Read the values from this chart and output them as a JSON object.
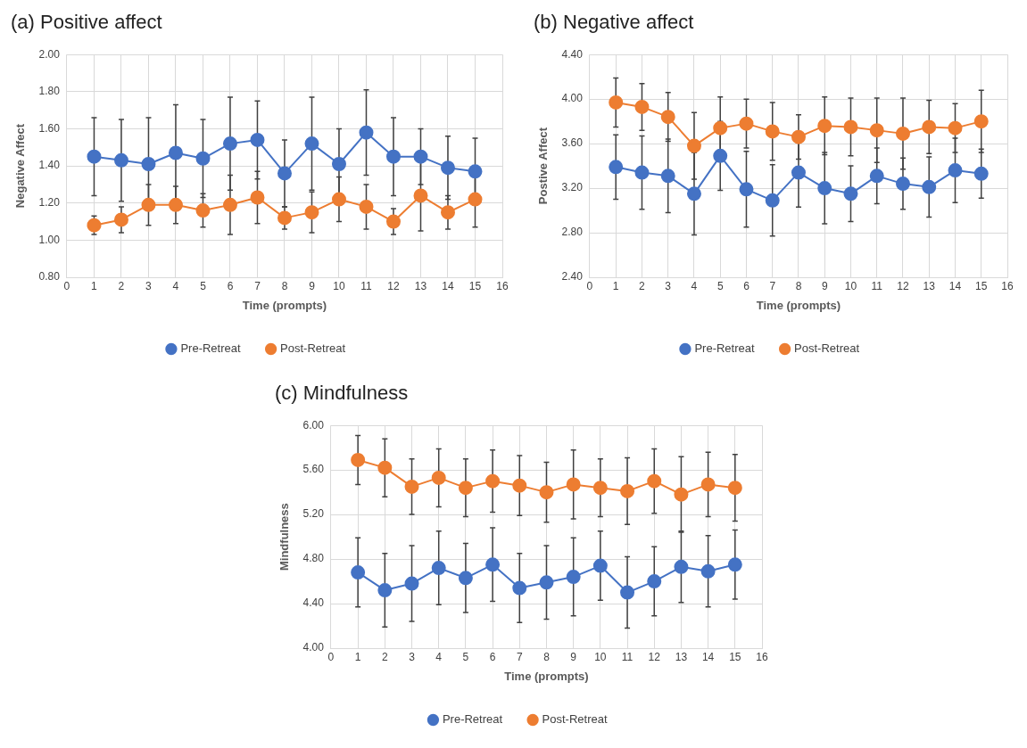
{
  "chart_data": [
    {
      "type": "line",
      "title": "(a) Positive affect",
      "xlabel": "Time (prompts)",
      "ylabel": "Negative Affect",
      "x": [
        1,
        2,
        3,
        4,
        5,
        6,
        7,
        8,
        9,
        10,
        11,
        12,
        13,
        14,
        15
      ],
      "xlim": [
        0,
        16
      ],
      "xticks": [
        0,
        1,
        2,
        3,
        4,
        5,
        6,
        7,
        8,
        9,
        10,
        11,
        12,
        13,
        14,
        15,
        16
      ],
      "ylim": [
        0.8,
        2.0
      ],
      "yticks": [
        {
          "value": 0.8,
          "label": "0.80"
        },
        {
          "value": 1.0,
          "label": "1.00"
        },
        {
          "value": 1.2,
          "label": "1.20"
        },
        {
          "value": 1.4,
          "label": "1.40"
        },
        {
          "value": 1.6,
          "label": "1.60"
        },
        {
          "value": 1.8,
          "label": "1.80"
        },
        {
          "value": 2.0,
          "label": "2.00"
        }
      ],
      "grid": true,
      "legend": "bottom",
      "marker": "circle",
      "series": [
        {
          "name": "Pre-Retreat",
          "color": "#4472c4",
          "values": [
            1.45,
            1.43,
            1.41,
            1.47,
            1.44,
            1.52,
            1.54,
            1.36,
            1.52,
            1.41,
            1.58,
            1.45,
            1.45,
            1.39,
            1.37
          ],
          "errors": [
            0.21,
            0.22,
            0.25,
            0.26,
            0.21,
            0.25,
            0.21,
            0.18,
            0.25,
            0.19,
            0.23,
            0.21,
            0.15,
            0.17,
            0.18
          ]
        },
        {
          "name": "Post-Retreat",
          "color": "#ed7d31",
          "values": [
            1.08,
            1.11,
            1.19,
            1.19,
            1.16,
            1.19,
            1.23,
            1.12,
            1.15,
            1.22,
            1.18,
            1.1,
            1.24,
            1.15,
            1.22
          ],
          "errors": [
            0.05,
            0.07,
            0.11,
            0.1,
            0.09,
            0.16,
            0.14,
            0.06,
            0.11,
            0.12,
            0.12,
            0.07,
            0.19,
            0.09,
            0.15
          ]
        }
      ]
    },
    {
      "type": "line",
      "title": "(b) Negative affect",
      "xlabel": "Time (prompts)",
      "ylabel": "Postive Affect",
      "x": [
        1,
        2,
        3,
        4,
        5,
        6,
        7,
        8,
        9,
        10,
        11,
        12,
        13,
        14,
        15
      ],
      "xlim": [
        0,
        16
      ],
      "xticks": [
        0,
        1,
        2,
        3,
        4,
        5,
        6,
        7,
        8,
        9,
        10,
        11,
        12,
        13,
        14,
        15,
        16
      ],
      "ylim": [
        2.4,
        4.4
      ],
      "yticks": [
        {
          "value": 2.4,
          "label": "2.40"
        },
        {
          "value": 2.8,
          "label": "2.80"
        },
        {
          "value": 3.2,
          "label": "3.20"
        },
        {
          "value": 3.6,
          "label": "3.60"
        },
        {
          "value": 4.0,
          "label": "4.00"
        },
        {
          "value": 4.4,
          "label": "4.40"
        }
      ],
      "grid": true,
      "legend": "bottom",
      "marker": "circle",
      "series": [
        {
          "name": "Pre-Retreat",
          "color": "#4472c4",
          "values": [
            3.39,
            3.34,
            3.31,
            3.15,
            3.49,
            3.19,
            3.09,
            3.34,
            3.2,
            3.15,
            3.31,
            3.24,
            3.21,
            3.36,
            3.33
          ],
          "errors": [
            0.29,
            0.33,
            0.33,
            0.37,
            0.31,
            0.34,
            0.32,
            0.31,
            0.32,
            0.25,
            0.25,
            0.23,
            0.27,
            0.29,
            0.22
          ]
        },
        {
          "name": "Post-Retreat",
          "color": "#ed7d31",
          "values": [
            3.97,
            3.93,
            3.84,
            3.58,
            3.74,
            3.78,
            3.71,
            3.66,
            3.76,
            3.75,
            3.72,
            3.69,
            3.75,
            3.74,
            3.8
          ],
          "errors": [
            0.22,
            0.21,
            0.22,
            0.3,
            0.28,
            0.22,
            0.26,
            0.2,
            0.26,
            0.26,
            0.29,
            0.32,
            0.24,
            0.22,
            0.28
          ]
        }
      ]
    },
    {
      "type": "line",
      "title": "(c) Mindfulness",
      "xlabel": "Time (prompts)",
      "ylabel": "Mindfulness",
      "x": [
        1,
        2,
        3,
        4,
        5,
        6,
        7,
        8,
        9,
        10,
        11,
        12,
        13,
        14,
        15
      ],
      "xlim": [
        0,
        16
      ],
      "xticks": [
        0,
        1,
        2,
        3,
        4,
        5,
        6,
        7,
        8,
        9,
        10,
        11,
        12,
        13,
        14,
        15,
        16
      ],
      "ylim": [
        4.0,
        6.0
      ],
      "yticks": [
        {
          "value": 4.0,
          "label": "4.00"
        },
        {
          "value": 4.4,
          "label": "4.40"
        },
        {
          "value": 4.8,
          "label": "4.80"
        },
        {
          "value": 5.2,
          "label": "5.20"
        },
        {
          "value": 5.6,
          "label": "5.60"
        },
        {
          "value": 6.0,
          "label": "6.00"
        }
      ],
      "grid": true,
      "legend": "bottom",
      "marker": "circle",
      "series": [
        {
          "name": "Pre-Retreat",
          "color": "#4472c4",
          "values": [
            4.68,
            4.52,
            4.58,
            4.72,
            4.63,
            4.75,
            4.54,
            4.59,
            4.64,
            4.74,
            4.5,
            4.6,
            4.73,
            4.69,
            4.75
          ],
          "errors": [
            0.31,
            0.33,
            0.34,
            0.33,
            0.31,
            0.33,
            0.31,
            0.33,
            0.35,
            0.31,
            0.32,
            0.31,
            0.32,
            0.32,
            0.31
          ]
        },
        {
          "name": "Post-Retreat",
          "color": "#ed7d31",
          "values": [
            5.69,
            5.62,
            5.45,
            5.53,
            5.44,
            5.5,
            5.46,
            5.4,
            5.47,
            5.44,
            5.41,
            5.5,
            5.38,
            5.47,
            5.44
          ],
          "errors": [
            0.22,
            0.26,
            0.25,
            0.26,
            0.26,
            0.28,
            0.27,
            0.27,
            0.31,
            0.26,
            0.3,
            0.29,
            0.34,
            0.29,
            0.3
          ]
        }
      ]
    }
  ]
}
